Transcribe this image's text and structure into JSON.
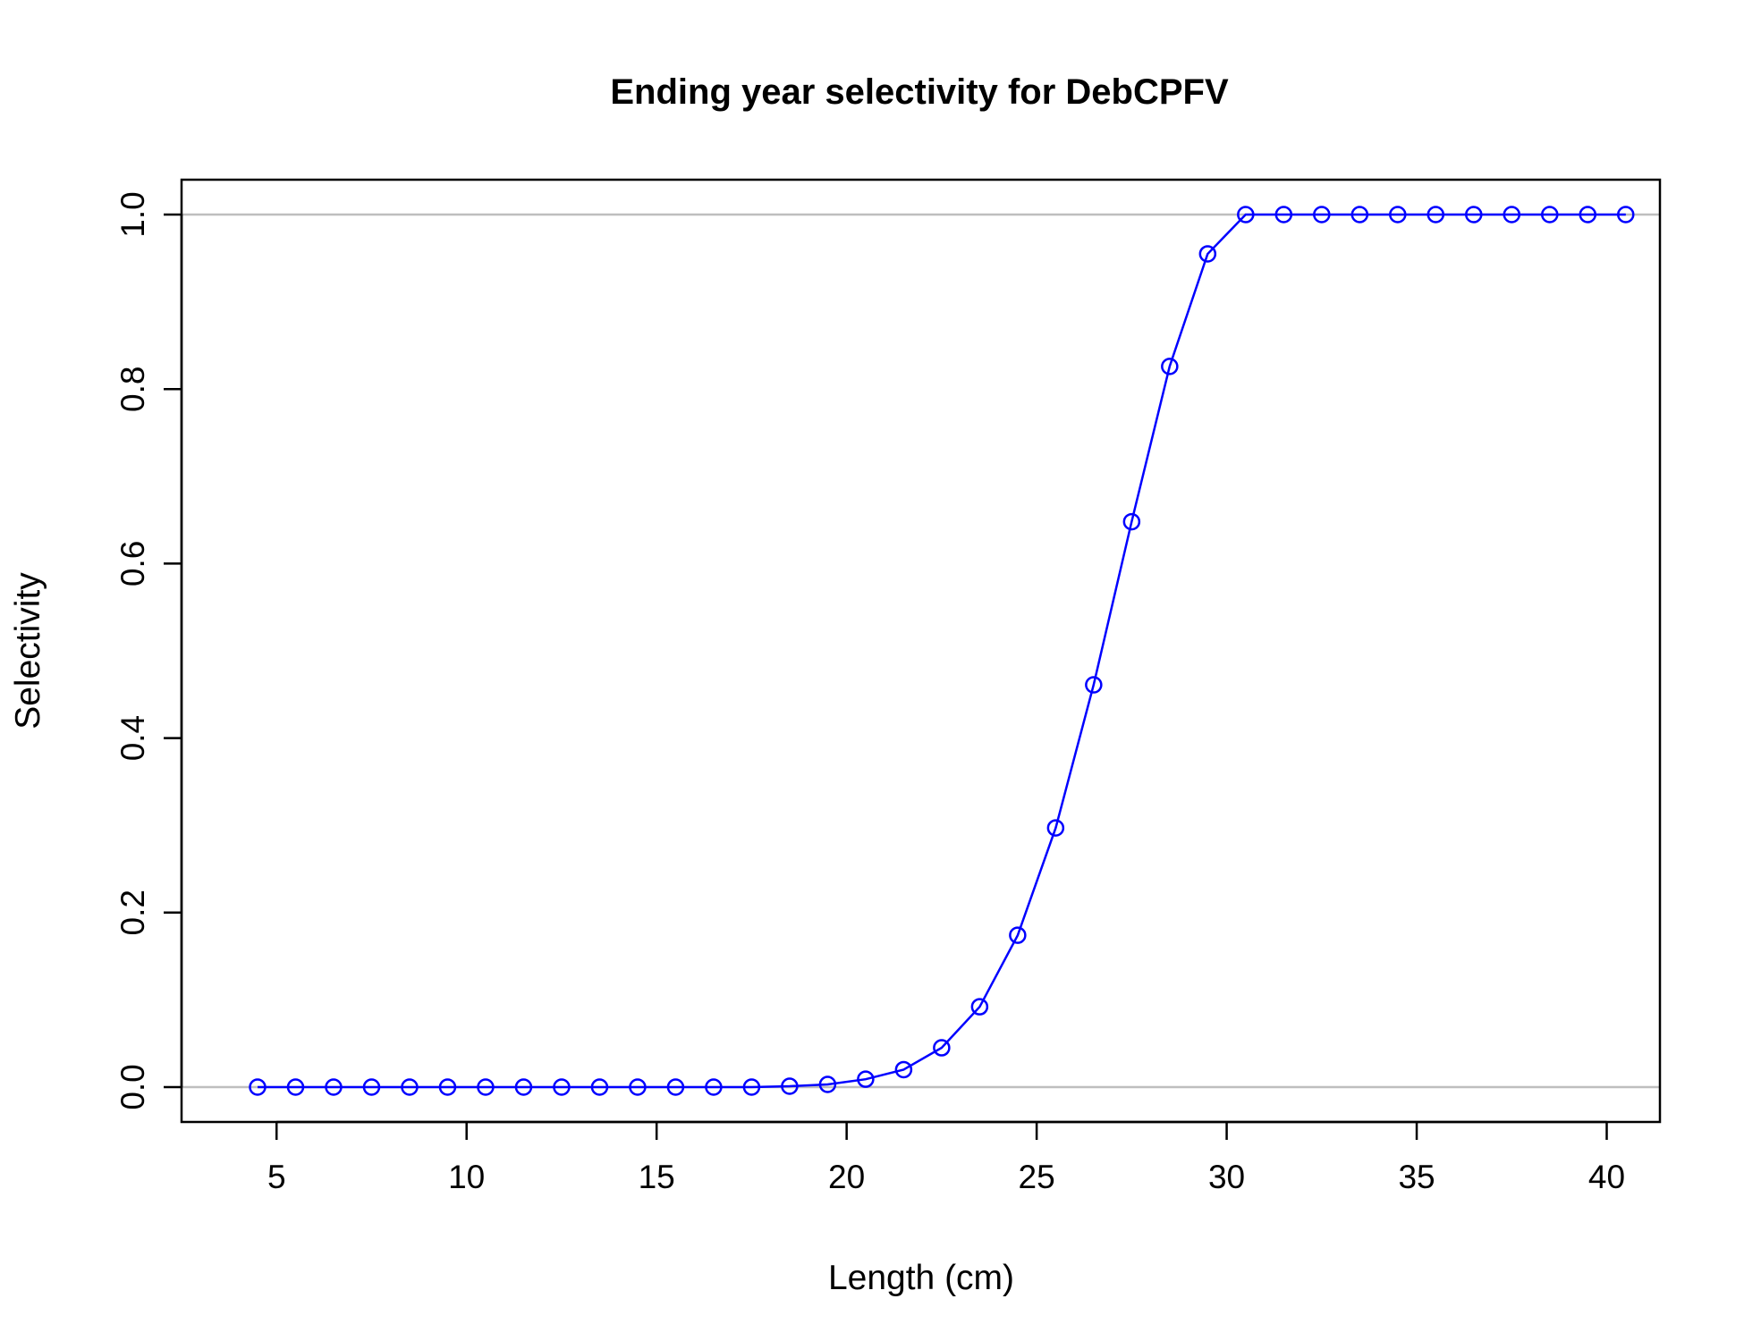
{
  "chart_data": {
    "type": "line",
    "title": "Ending year selectivity for DebCPFV",
    "xlabel": "Length (cm)",
    "ylabel": "Selectivity",
    "xlim": [
      2.5,
      41.4
    ],
    "ylim": [
      -0.04,
      1.04
    ],
    "xticks": [
      "5",
      "10",
      "15",
      "20",
      "25",
      "30",
      "35",
      "40"
    ],
    "yticks": [
      "0.0",
      "0.2",
      "0.4",
      "0.6",
      "0.8",
      "1.0"
    ],
    "reference_lines": [
      0,
      1
    ],
    "reference_line_color": "#bebebe",
    "series": [
      {
        "color": "#0000ff",
        "marker": "open-circle",
        "x": [
          4.5,
          5.5,
          6.5,
          7.5,
          8.5,
          9.5,
          10.5,
          11.5,
          12.5,
          13.5,
          14.5,
          15.5,
          16.5,
          17.5,
          18.5,
          19.5,
          20.5,
          21.5,
          22.5,
          23.5,
          24.5,
          25.5,
          26.5,
          27.5,
          28.5,
          29.5,
          30.5,
          31.5,
          32.5,
          33.5,
          34.5,
          35.5,
          36.5,
          37.5,
          38.5,
          39.5,
          40.5
        ],
        "y": [
          0,
          0,
          0,
          0,
          0,
          0,
          0,
          0,
          0,
          0,
          0,
          0,
          0,
          0,
          0.001,
          0.003,
          0.009,
          0.02,
          0.045,
          0.092,
          0.174,
          0.297,
          0.461,
          0.648,
          0.826,
          0.955,
          1,
          1,
          1,
          1,
          1,
          1,
          1,
          1,
          1,
          1,
          1
        ]
      }
    ]
  }
}
